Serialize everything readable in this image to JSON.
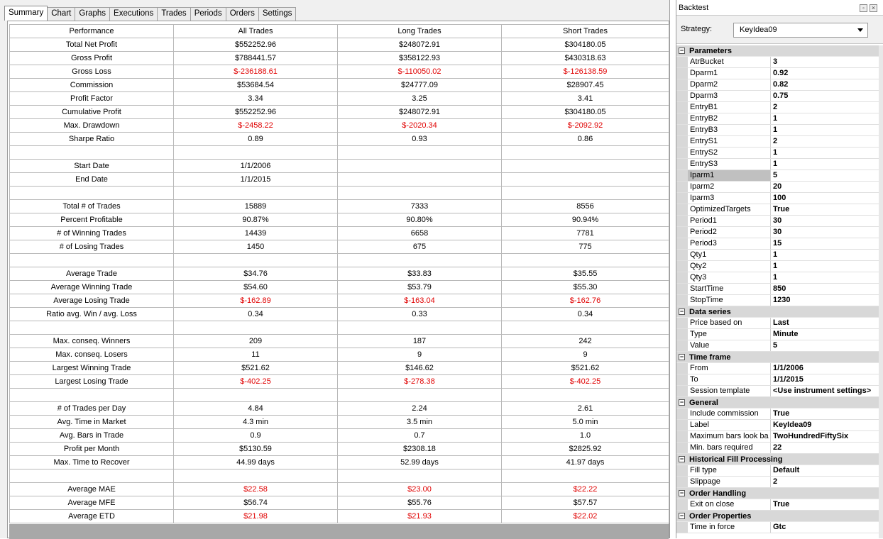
{
  "tabs": [
    "Summary",
    "Chart",
    "Graphs",
    "Executions",
    "Trades",
    "Periods",
    "Orders",
    "Settings"
  ],
  "table": {
    "headers": [
      "Performance",
      "All Trades",
      "Long Trades",
      "Short Trades"
    ],
    "rows": [
      [
        "Total Net Profit",
        "$552252.96",
        "$248072.91",
        "$304180.05"
      ],
      [
        "Gross Profit",
        "$788441.57",
        "$358122.93",
        "$430318.63"
      ],
      [
        "Gross Loss",
        "$-236188.61",
        "$-110050.02",
        "$-126138.59"
      ],
      [
        "Commission",
        "$53684.54",
        "$24777.09",
        "$28907.45"
      ],
      [
        "Profit Factor",
        "3.34",
        "3.25",
        "3.41"
      ],
      [
        "Cumulative Profit",
        "$552252.96",
        "$248072.91",
        "$304180.05"
      ],
      [
        "Max. Drawdown",
        "$-2458.22",
        "$-2020.34",
        "$-2092.92"
      ],
      [
        "Sharpe Ratio",
        "0.89",
        "0.93",
        "0.86"
      ],
      [
        "",
        "",
        "",
        ""
      ],
      [
        "Start Date",
        "1/1/2006",
        "",
        ""
      ],
      [
        "End Date",
        "1/1/2015",
        "",
        ""
      ],
      [
        "",
        "",
        "",
        ""
      ],
      [
        "Total # of Trades",
        "15889",
        "7333",
        "8556"
      ],
      [
        "Percent Profitable",
        "90.87%",
        "90.80%",
        "90.94%"
      ],
      [
        "# of Winning Trades",
        "14439",
        "6658",
        "7781"
      ],
      [
        "# of Losing Trades",
        "1450",
        "675",
        "775"
      ],
      [
        "",
        "",
        "",
        ""
      ],
      [
        "Average Trade",
        "$34.76",
        "$33.83",
        "$35.55"
      ],
      [
        "Average Winning Trade",
        "$54.60",
        "$53.79",
        "$55.30"
      ],
      [
        "Average Losing Trade",
        "$-162.89",
        "$-163.04",
        "$-162.76"
      ],
      [
        "Ratio avg. Win / avg. Loss",
        "0.34",
        "0.33",
        "0.34"
      ],
      [
        "",
        "",
        "",
        ""
      ],
      [
        "Max. conseq. Winners",
        "209",
        "187",
        "242"
      ],
      [
        "Max. conseq. Losers",
        "11",
        "9",
        "9"
      ],
      [
        "Largest Winning Trade",
        "$521.62",
        "$146.62",
        "$521.62"
      ],
      [
        "Largest Losing Trade",
        "$-402.25",
        "$-278.38",
        "$-402.25"
      ],
      [
        "",
        "",
        "",
        ""
      ],
      [
        "# of Trades per Day",
        "4.84",
        "2.24",
        "2.61"
      ],
      [
        "Avg. Time in Market",
        "4.3 min",
        "3.5 min",
        "5.0 min"
      ],
      [
        "Avg. Bars in Trade",
        "0.9",
        "0.7",
        "1.0"
      ],
      [
        "Profit per Month",
        "$5130.59",
        "$2308.18",
        "$2825.92"
      ],
      [
        "Max. Time to Recover",
        "44.99 days",
        "52.99 days",
        "41.97 days"
      ],
      [
        "",
        "",
        "",
        ""
      ],
      [
        "Average MAE",
        "$22.58",
        "$23.00",
        "$22.22"
      ],
      [
        "Average MFE",
        "$56.74",
        "$55.76",
        "$57.57"
      ],
      [
        "Average ETD",
        "$21.98",
        "$21.93",
        "$22.02"
      ]
    ],
    "red_rows": [
      2,
      6,
      19,
      25,
      33,
      35
    ]
  },
  "backtest": {
    "title": "Backtest",
    "strategy_label": "Strategy:",
    "strategy_value": "KeyIdea09",
    "categories": [
      {
        "name": "Parameters",
        "props": [
          [
            "AtrBucket",
            "3"
          ],
          [
            "Dparm1",
            "0.92"
          ],
          [
            "Dparm2",
            "0.82"
          ],
          [
            "Dparm3",
            "0.75"
          ],
          [
            "EntryB1",
            "2"
          ],
          [
            "EntryB2",
            "1"
          ],
          [
            "EntryB3",
            "1"
          ],
          [
            "EntryS1",
            "2"
          ],
          [
            "EntryS2",
            "1"
          ],
          [
            "EntryS3",
            "1"
          ],
          [
            "Iparm1",
            "5"
          ],
          [
            "Iparm2",
            "20"
          ],
          [
            "Iparm3",
            "100"
          ],
          [
            "OptimizedTargets",
            "True"
          ],
          [
            "Period1",
            "30"
          ],
          [
            "Period2",
            "30"
          ],
          [
            "Period3",
            "15"
          ],
          [
            "Qty1",
            "1"
          ],
          [
            "Qty2",
            "1"
          ],
          [
            "Qty3",
            "1"
          ],
          [
            "StartTime",
            "850"
          ],
          [
            "StopTime",
            "1230"
          ]
        ]
      },
      {
        "name": "Data series",
        "props": [
          [
            "Price based on",
            "Last"
          ],
          [
            "Type",
            "Minute"
          ],
          [
            "Value",
            "5"
          ]
        ]
      },
      {
        "name": "Time frame",
        "props": [
          [
            "From",
            "1/1/2006"
          ],
          [
            "To",
            "1/1/2015"
          ],
          [
            "Session template",
            "<Use instrument settings>"
          ]
        ]
      },
      {
        "name": "General",
        "props": [
          [
            "Include commission",
            "True"
          ],
          [
            "Label",
            "KeyIdea09"
          ],
          [
            "Maximum bars look ba",
            "TwoHundredFiftySix"
          ],
          [
            "Min. bars required",
            "22"
          ]
        ]
      },
      {
        "name": "Historical Fill Processing",
        "props": [
          [
            "Fill type",
            "Default"
          ],
          [
            "Slippage",
            "2"
          ]
        ]
      },
      {
        "name": "Order Handling",
        "props": [
          [
            "Exit on close",
            "True"
          ]
        ]
      },
      {
        "name": "Order Properties",
        "props": [
          [
            "Time in force",
            "Gtc"
          ]
        ]
      }
    ],
    "selected_prop": "Iparm1"
  }
}
